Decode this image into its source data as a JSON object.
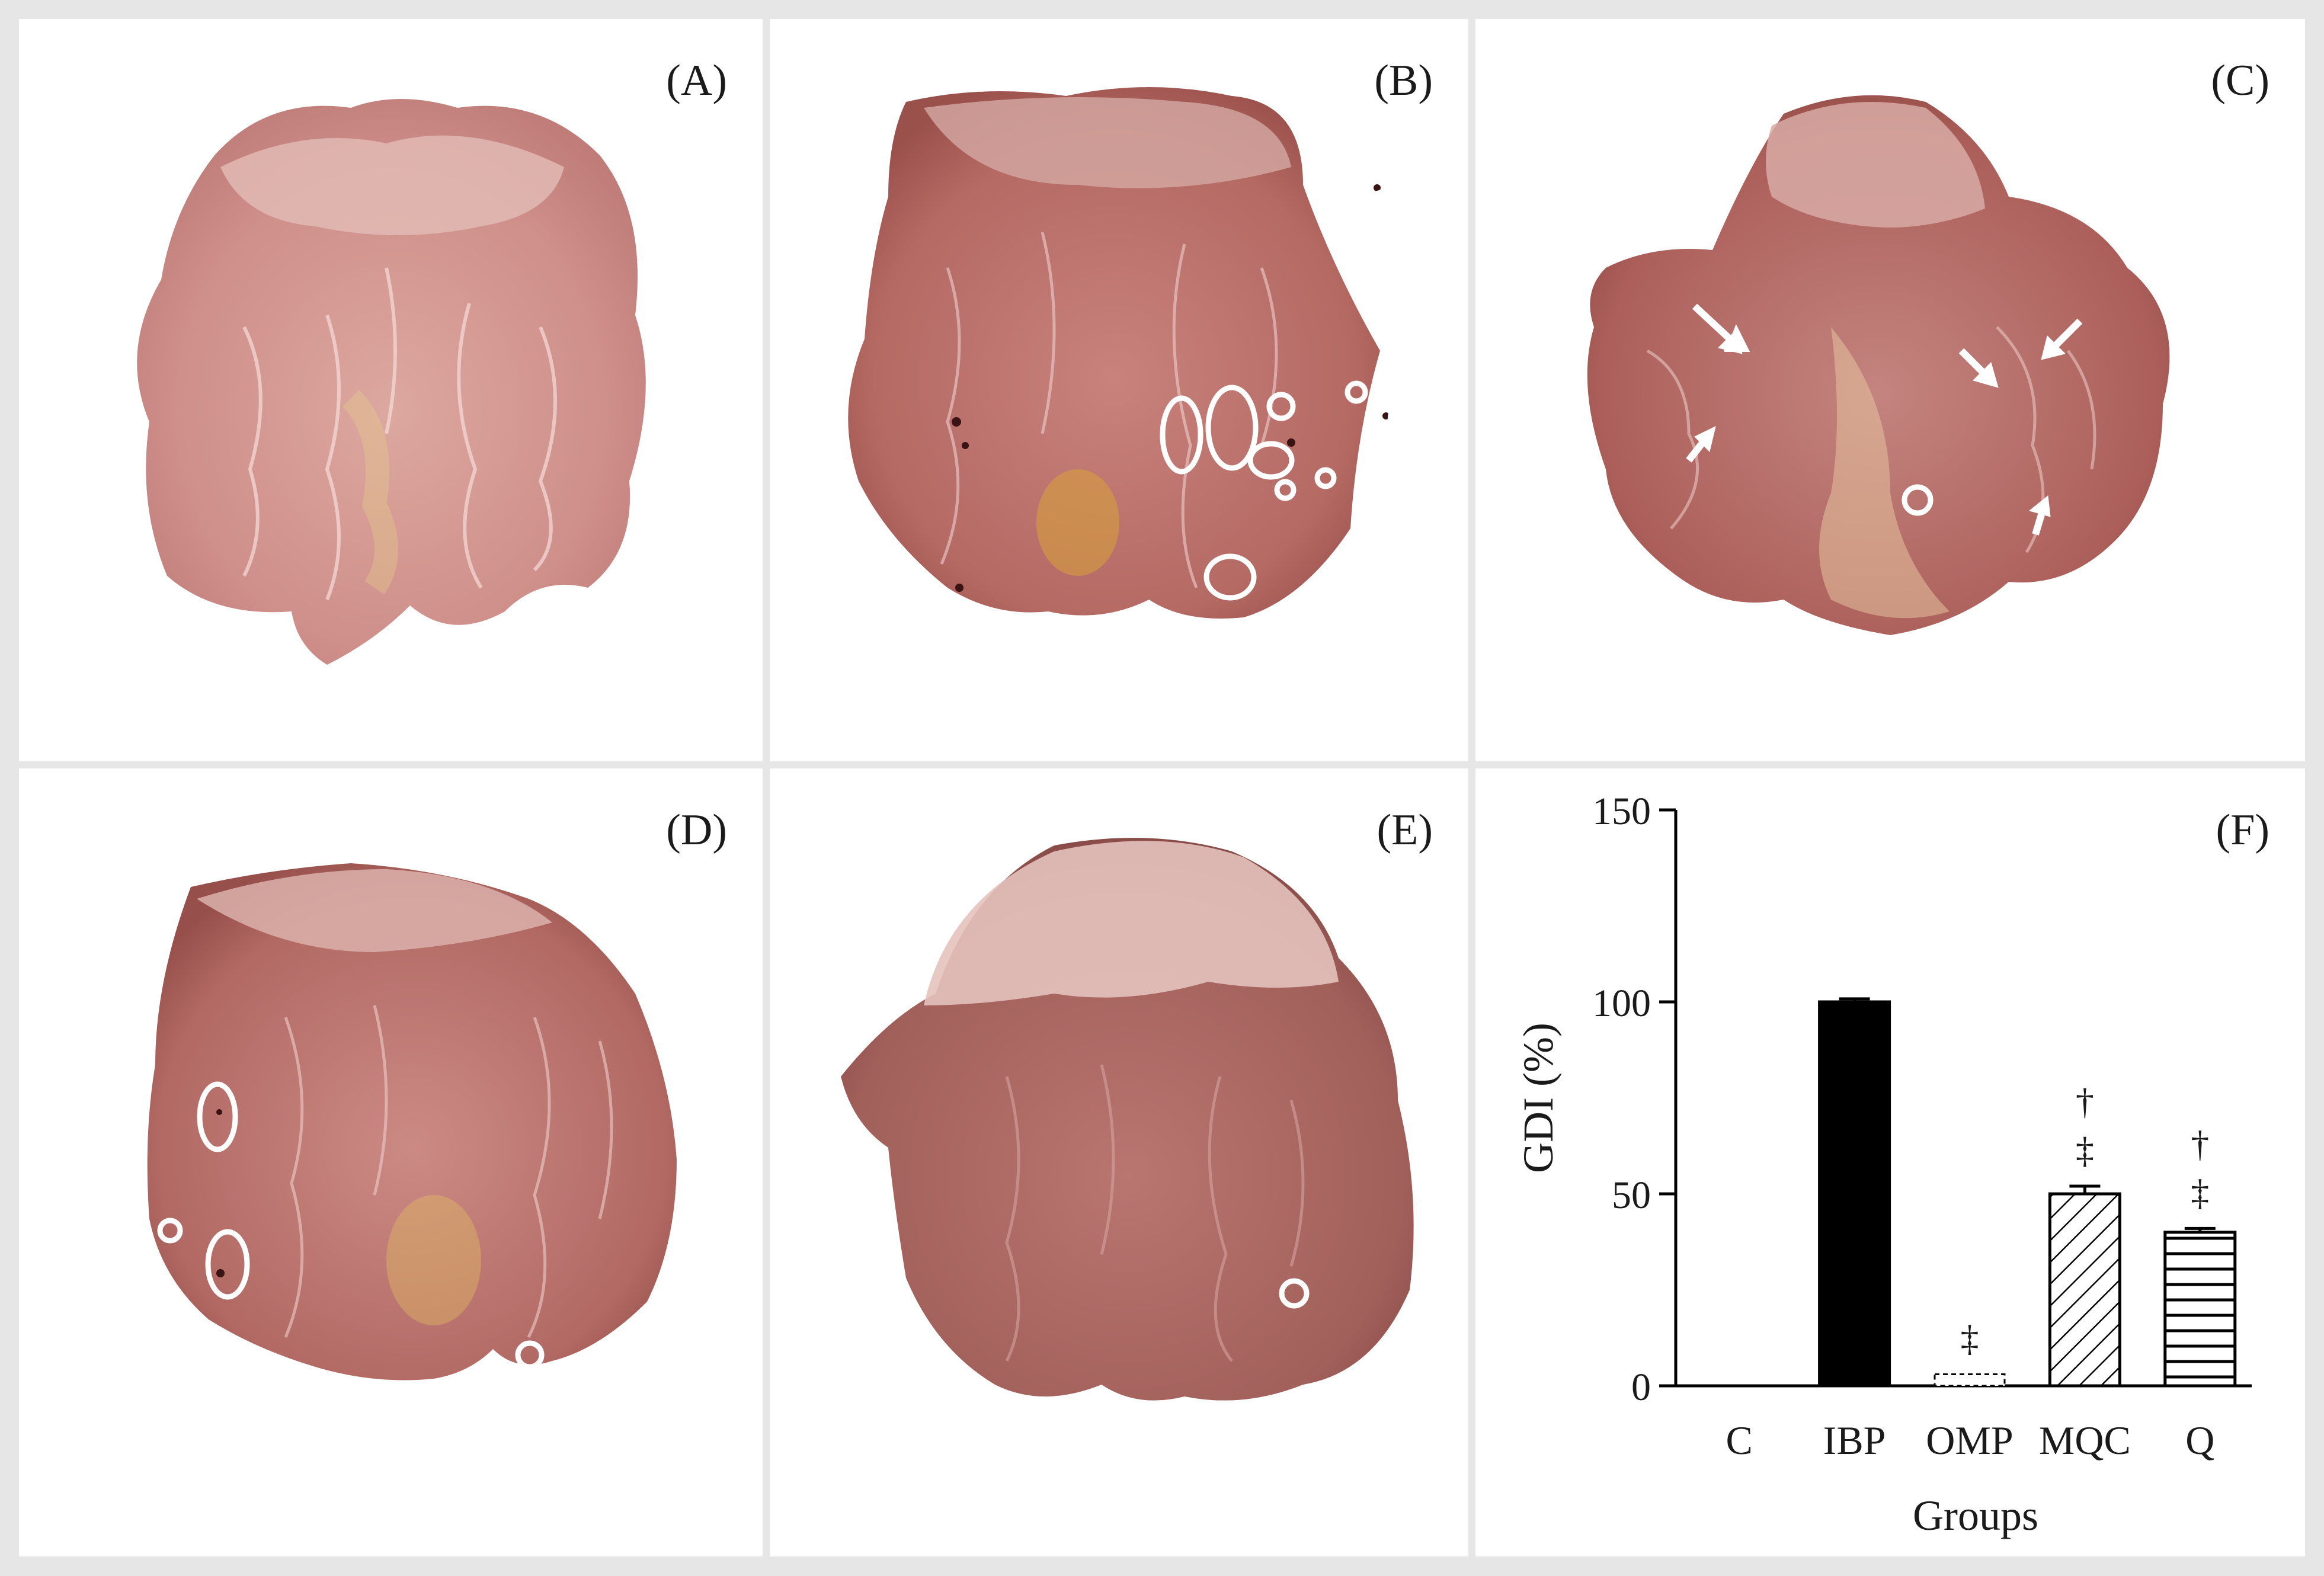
{
  "figure": {
    "panels": [
      {
        "label": "(A)"
      },
      {
        "label": "(B)"
      },
      {
        "label": "(C)"
      },
      {
        "label": "(D)"
      },
      {
        "label": "(E)"
      },
      {
        "label": "(F)"
      }
    ],
    "colors": {
      "tissue_pink": "#d79a95",
      "tissue_light": "#e6c0b6",
      "tissue_dark": "#a35a55",
      "lesion": "#4a1a18",
      "marker": "#ffffff",
      "bar_black": "#000000"
    }
  },
  "chart_data": {
    "type": "bar",
    "categories": [
      "C",
      "IBP",
      "OMP",
      "MQC",
      "Q"
    ],
    "values": [
      0,
      100,
      3,
      50,
      40
    ],
    "errors": [
      0,
      0.8,
      0,
      2,
      1
    ],
    "fills": [
      "none",
      "solid-black",
      "dashed-light",
      "diagonal-hatch",
      "horizontal-lines"
    ],
    "annotations": [
      "",
      "",
      "‡",
      "†\n‡",
      "†\n‡"
    ],
    "xlabel": "Groups",
    "ylabel": "GDI (%)",
    "ylim": [
      0,
      150
    ],
    "yticks": [
      0,
      50,
      100,
      150
    ],
    "grid": false
  }
}
